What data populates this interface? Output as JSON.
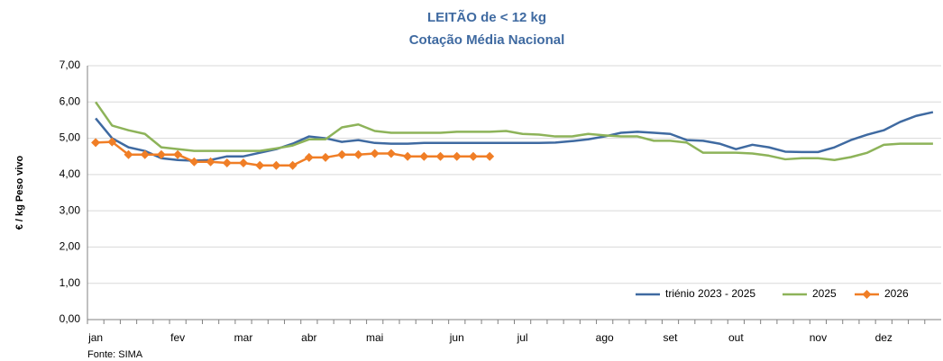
{
  "chart_data": {
    "type": "line",
    "title": "LEITÃO de < 12 kg",
    "subtitle": "Cotação Média Nacional",
    "y_label": "€ / kg Peso vivo",
    "source": "Fonte: SIMA",
    "categories": [
      "jan",
      null,
      null,
      null,
      null,
      "fev",
      null,
      null,
      null,
      "mar",
      null,
      null,
      null,
      "abr",
      null,
      null,
      null,
      "mai",
      null,
      null,
      null,
      null,
      "jun",
      null,
      null,
      null,
      "jul",
      null,
      null,
      null,
      null,
      "ago",
      null,
      null,
      null,
      "set",
      null,
      null,
      null,
      "out",
      null,
      null,
      null,
      null,
      "nov",
      null,
      null,
      null,
      "dez",
      null,
      null,
      null
    ],
    "ylim": [
      0,
      7
    ],
    "yticks": [
      {
        "value": 0,
        "label": "0,00"
      },
      {
        "value": 1,
        "label": "1,00"
      },
      {
        "value": 2,
        "label": "2,00"
      },
      {
        "value": 3,
        "label": "3,00"
      },
      {
        "value": 4,
        "label": "4,00"
      },
      {
        "value": 5,
        "label": "5,00"
      },
      {
        "value": 6,
        "label": "6,00"
      },
      {
        "value": 7,
        "label": "7,00"
      }
    ],
    "grid": true,
    "legend": "bottom-right",
    "series": [
      {
        "name": "triénio 2023 - 2025",
        "color": "#3f6aa1",
        "marker": false,
        "values": [
          5.55,
          5.0,
          4.75,
          4.65,
          4.45,
          4.4,
          4.38,
          4.4,
          4.5,
          4.5,
          4.6,
          4.7,
          4.85,
          5.05,
          5.0,
          4.9,
          4.95,
          4.87,
          4.85,
          4.85,
          4.87,
          4.87,
          4.87,
          4.87,
          4.87,
          4.87,
          4.87,
          4.87,
          4.88,
          4.92,
          4.97,
          5.05,
          5.15,
          5.18,
          5.15,
          5.12,
          4.95,
          4.93,
          4.85,
          4.7,
          4.82,
          4.75,
          4.63,
          4.62,
          4.62,
          4.75,
          4.95,
          5.1,
          5.22,
          5.45,
          5.62,
          5.72
        ]
      },
      {
        "name": "2025",
        "color": "#8db359",
        "marker": false,
        "values": [
          6.0,
          5.35,
          5.22,
          5.12,
          4.75,
          4.7,
          4.65,
          4.65,
          4.65,
          4.65,
          4.65,
          4.72,
          4.8,
          4.97,
          4.97,
          5.3,
          5.38,
          5.2,
          5.15,
          5.15,
          5.15,
          5.15,
          5.18,
          5.18,
          5.18,
          5.2,
          5.12,
          5.1,
          5.05,
          5.05,
          5.12,
          5.08,
          5.05,
          5.05,
          4.93,
          4.93,
          4.88,
          4.6,
          4.6,
          4.6,
          4.58,
          4.52,
          4.42,
          4.45,
          4.45,
          4.4,
          4.48,
          4.6,
          4.82,
          4.85,
          4.85,
          4.85
        ]
      },
      {
        "name": "2026",
        "color": "#f07e26",
        "marker": true,
        "values": [
          4.88,
          4.9,
          4.55,
          4.55,
          4.55,
          4.55,
          4.35,
          4.35,
          4.32,
          4.32,
          4.25,
          4.25,
          4.25,
          4.47,
          4.47,
          4.55,
          4.55,
          4.58,
          4.58,
          4.5,
          4.5,
          4.5,
          4.5,
          4.5,
          4.5,
          null,
          null,
          null,
          null,
          null,
          null,
          null,
          null,
          null,
          null,
          null,
          null,
          null,
          null,
          null,
          null,
          null,
          null,
          null,
          null,
          null,
          null,
          null,
          null,
          null,
          null,
          null
        ]
      }
    ]
  }
}
